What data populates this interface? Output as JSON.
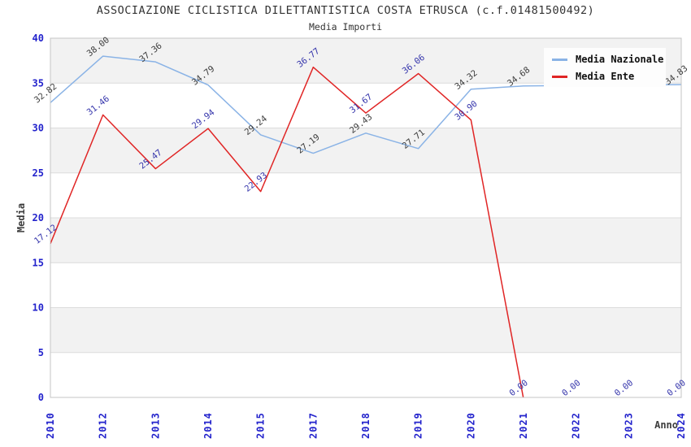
{
  "chart_data": {
    "type": "line",
    "title": "ASSOCIAZIONE CICLISTICA DILETTANTISTICA COSTA ETRUSCA (c.f.01481500492)",
    "subtitle": "Media Importi",
    "xlabel": "Anno",
    "ylabel": "Media",
    "ylim": [
      0,
      40
    ],
    "ytick_step": 5,
    "grid": {
      "band_color": "#f2f2f2",
      "line_color": "#dcdcdc",
      "border_color": "#c5c5c5"
    },
    "axis_tick_color": "#2323cc",
    "axis_title_color": "#3c3c3c",
    "legend_position": "top-right",
    "categories": [
      "2010",
      "2012",
      "2013",
      "2014",
      "2015",
      "2017",
      "2018",
      "2019",
      "2020",
      "2021",
      "2022",
      "2023",
      "2024"
    ],
    "series": [
      {
        "name": "Media Nazionale",
        "color": "#8ab3e6",
        "label_color": "#3c3c3c",
        "values": [
          32.82,
          38.0,
          37.36,
          34.79,
          29.24,
          27.19,
          29.43,
          27.71,
          34.32,
          34.68,
          34.74,
          34.79,
          34.83
        ],
        "labels": [
          "32.82",
          "38.00",
          "37.36",
          "34.79",
          "29.24",
          "27.19",
          "29.43",
          "27.71",
          "34.32",
          "34.68",
          null,
          null,
          "34.83"
        ]
      },
      {
        "name": "Media Ente",
        "color": "#e02525",
        "label_color": "#3434ab",
        "values": [
          17.12,
          31.46,
          25.47,
          29.94,
          22.93,
          36.77,
          31.67,
          36.06,
          30.9,
          0.0,
          0.0,
          0.0,
          0.0
        ],
        "labels": [
          "17.12",
          "31.46",
          "25.47",
          "29.94",
          "22.93",
          "36.77",
          "31.67",
          "36.06",
          "30.90",
          "0.00",
          "0.00",
          "0.00",
          "0.00"
        ]
      }
    ]
  }
}
